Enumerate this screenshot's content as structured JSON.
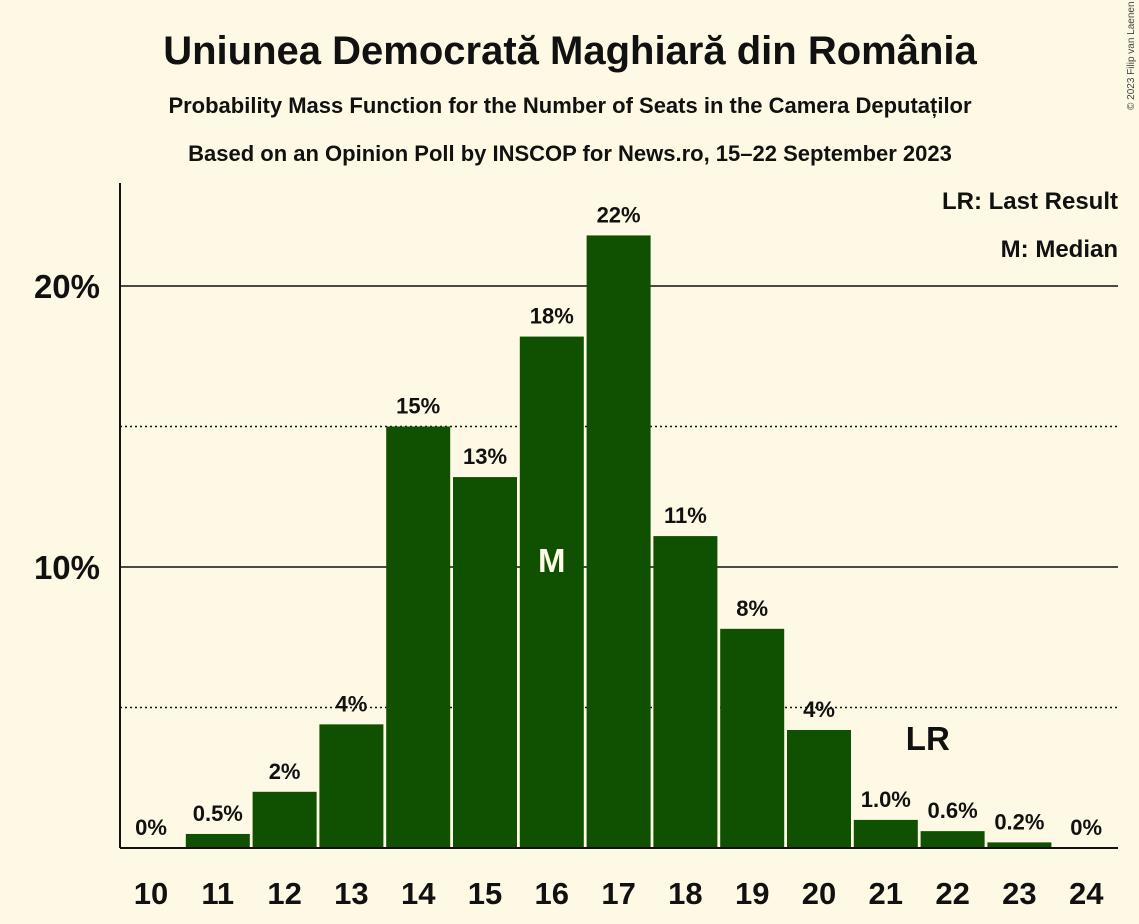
{
  "title": "Uniunea Democrată Maghiară din România",
  "subtitle": "Probability Mass Function for the Number of Seats in the Camera Deputaților",
  "subtitle2": "Based on an Opinion Poll by INSCOP for News.ro, 15–22 September 2023",
  "copyright": "© 2023 Filip van Laenen",
  "legend": {
    "last_result": "LR: Last Result",
    "median": "M: Median"
  },
  "colors": {
    "bar": "#0f5100",
    "background": "#fdf9e4",
    "median_label": "#fdf9e4"
  },
  "chart_data": {
    "type": "bar",
    "title": "Uniunea Democrată Maghiară din România",
    "xlabel": "",
    "ylabel": "",
    "ylim": [
      0,
      23
    ],
    "yticks": [
      {
        "value": 10,
        "label": "10%"
      },
      {
        "value": 20,
        "label": "20%"
      }
    ],
    "dotted_gridlines": [
      5,
      15
    ],
    "categories": [
      "10",
      "11",
      "12",
      "13",
      "14",
      "15",
      "16",
      "17",
      "18",
      "19",
      "20",
      "21",
      "22",
      "23",
      "24"
    ],
    "values": [
      0,
      0.5,
      2,
      4.4,
      15,
      13.2,
      18.2,
      21.8,
      11.1,
      7.8,
      4.2,
      1.0,
      0.6,
      0.2,
      0
    ],
    "labels": [
      "0%",
      "0.5%",
      "2%",
      "4%",
      "15%",
      "13%",
      "18%",
      "22%",
      "11%",
      "8%",
      "4%",
      "1.0%",
      "0.6%",
      "0.2%",
      "0%"
    ],
    "median": {
      "category": "16",
      "label": "M"
    },
    "last_result": {
      "category": "21",
      "label": "LR"
    }
  }
}
